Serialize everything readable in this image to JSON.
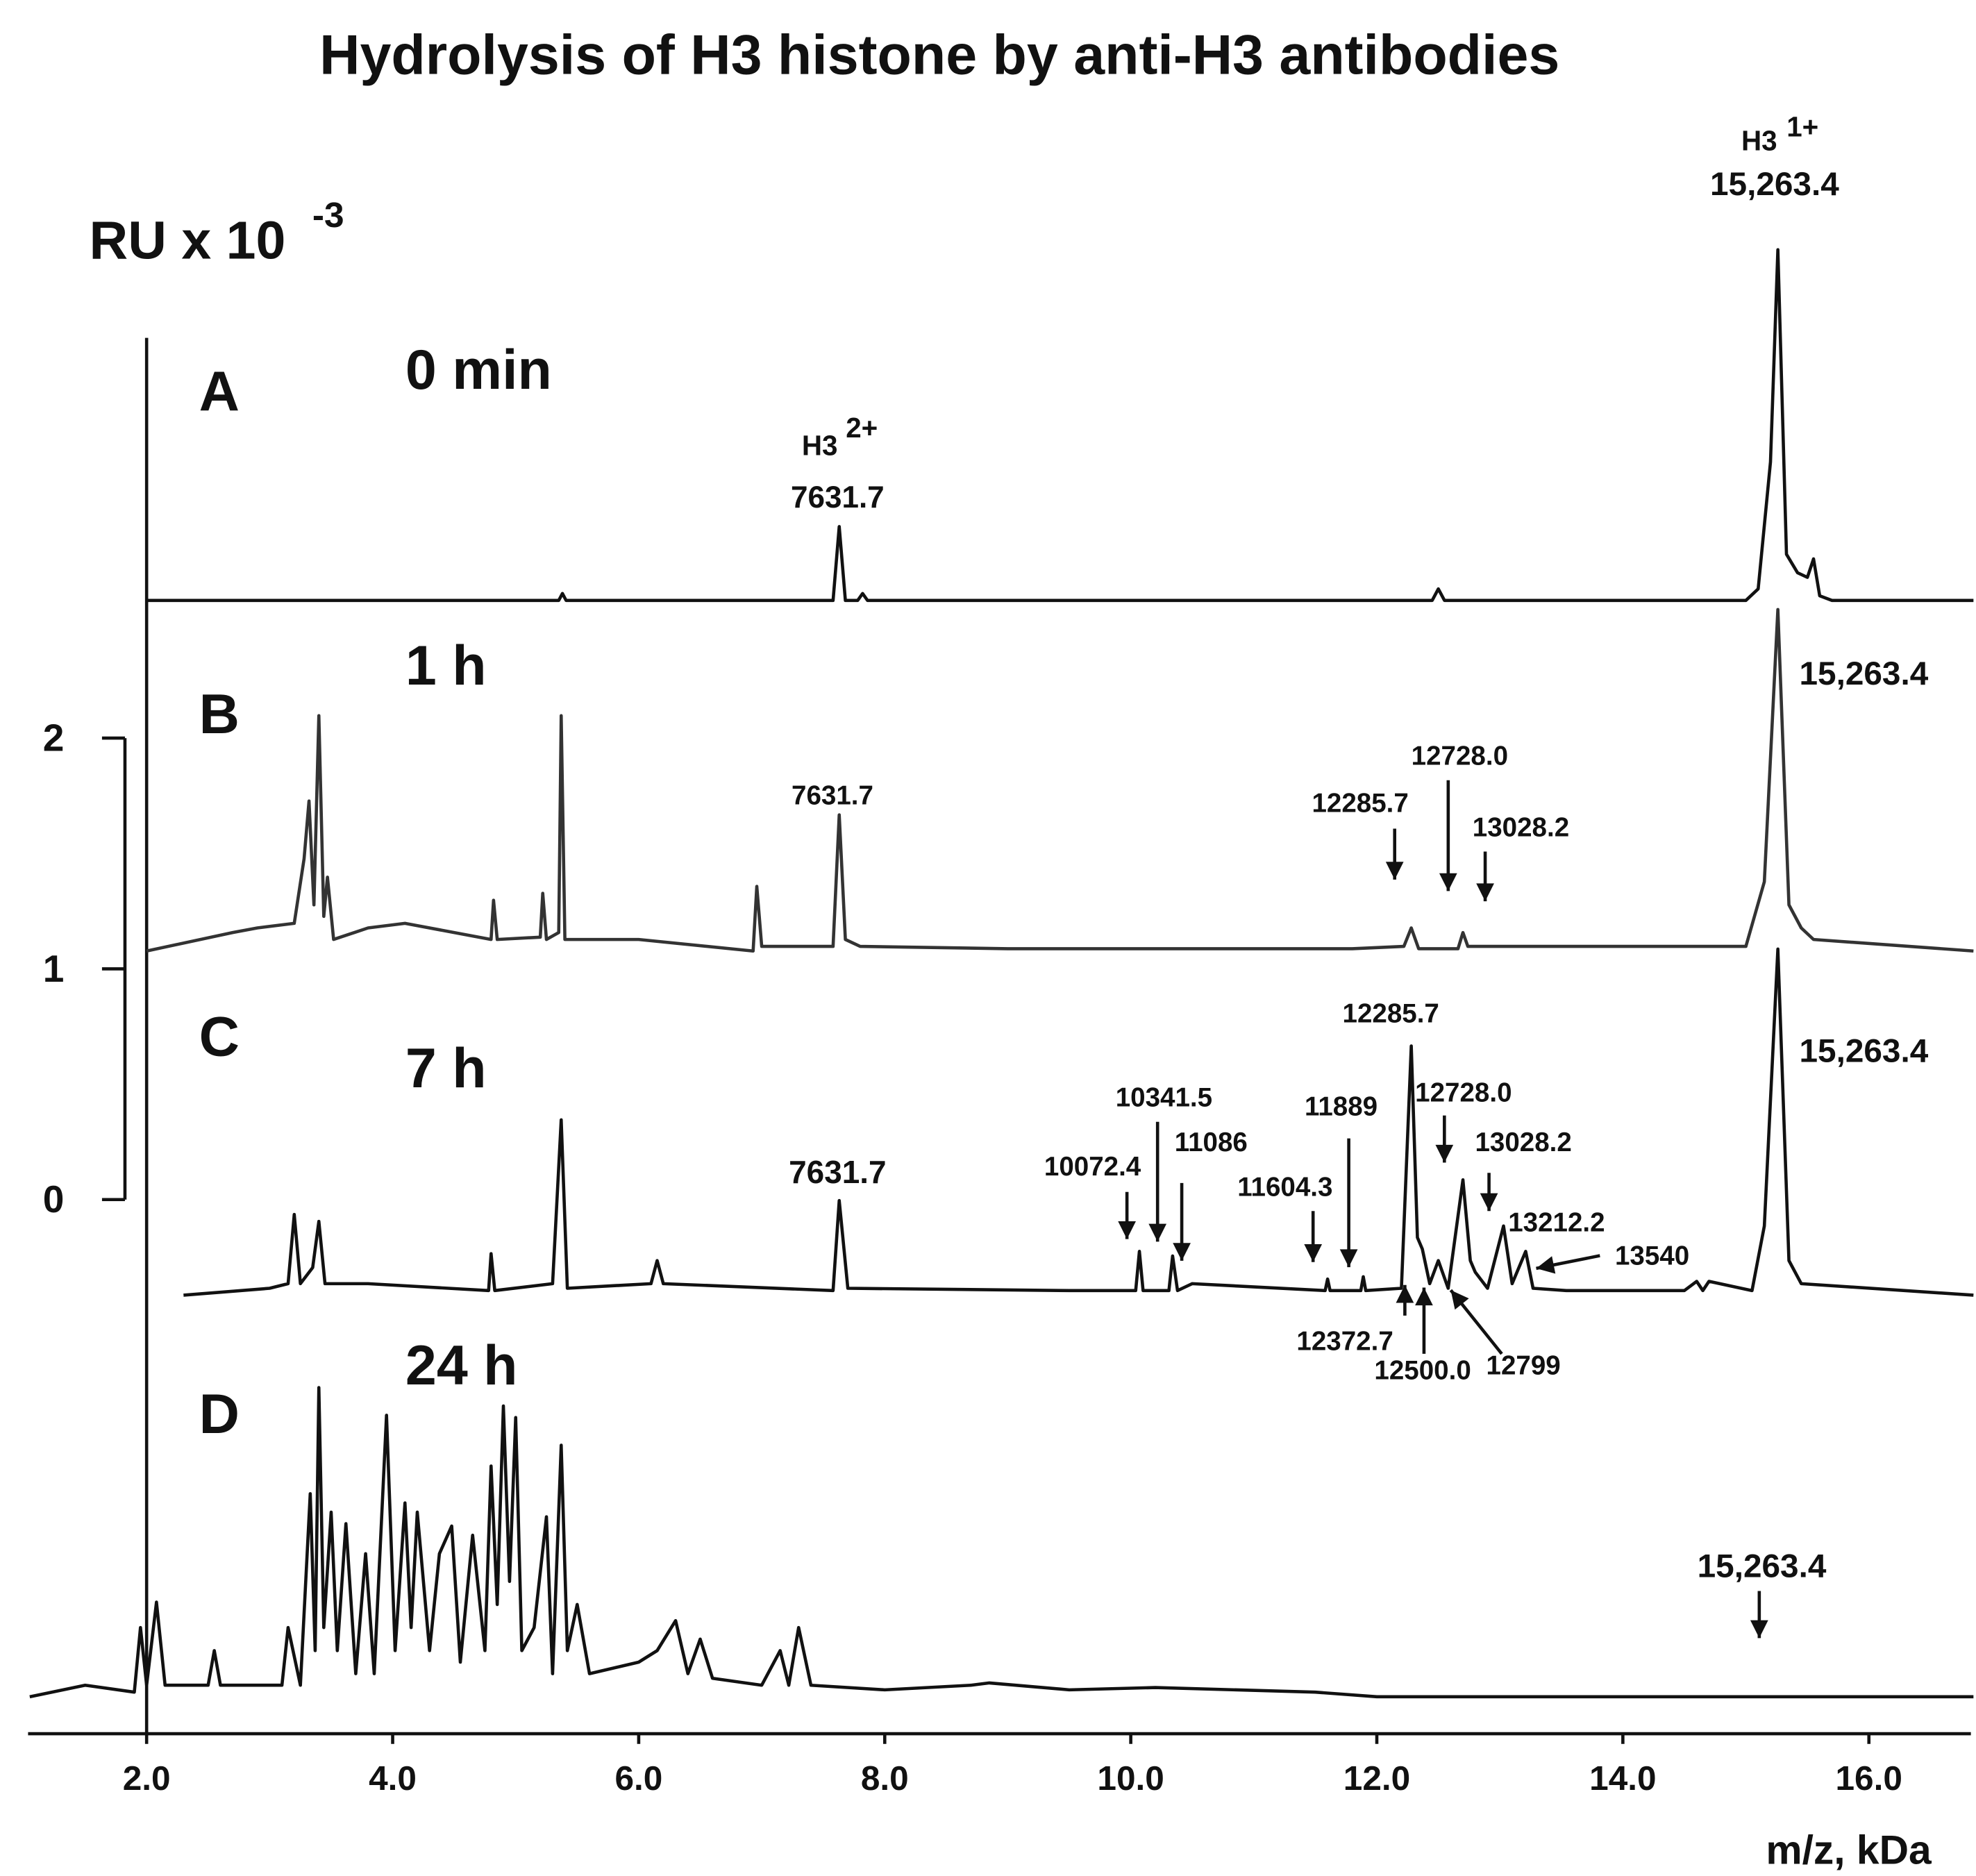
{
  "chart_data": {
    "type": "line",
    "title": "Hydrolysis of H3 histone by anti-H3 antibodies",
    "y_label": "RU x 10",
    "y_label_exponent": "-3",
    "x_label": "m/z, kDa",
    "xlim": [
      1.05,
      16.85
    ],
    "xticks": [
      {
        "value": 2,
        "label": "2.0"
      },
      {
        "value": 4,
        "label": "4.0"
      },
      {
        "value": 6,
        "label": "6.0"
      },
      {
        "value": 8,
        "label": "8.0"
      },
      {
        "value": 10,
        "label": "10.0"
      },
      {
        "value": 12,
        "label": "12.0"
      },
      {
        "value": 14,
        "label": "14.0"
      },
      {
        "value": 16,
        "label": "16.0"
      }
    ],
    "ylim": [
      0,
      2
    ],
    "yticks": [
      0,
      1,
      2
    ],
    "series": [
      {
        "name": "A",
        "time": "0 min",
        "color": "#111111",
        "x": [
          2.0,
          5.35,
          5.38,
          5.41,
          7.58,
          7.63,
          7.68,
          7.78,
          7.82,
          7.86,
          12.45,
          12.5,
          12.55,
          15.0,
          15.1,
          15.2,
          15.26,
          15.33,
          15.42,
          15.5,
          15.55,
          15.6,
          15.7,
          16.85
        ],
        "values": [
          0,
          0,
          0.03,
          0,
          0,
          0.32,
          0,
          0,
          0.03,
          0,
          0,
          0.05,
          0,
          0,
          0.05,
          0.6,
          1.52,
          0.2,
          0.12,
          0.1,
          0.18,
          0.02,
          0,
          0
        ],
        "annotations": [
          "H3",
          "2+",
          "7631.7",
          "H3",
          "1+",
          "15,263.4"
        ]
      },
      {
        "name": "B",
        "time": "1 h",
        "color": "#333333",
        "x": [
          2.0,
          2.7,
          2.9,
          3.2,
          3.28,
          3.32,
          3.36,
          3.4,
          3.44,
          3.47,
          3.52,
          3.8,
          4.1,
          4.8,
          4.82,
          4.85,
          5.2,
          5.22,
          5.25,
          5.35,
          5.37,
          5.4,
          6.0,
          6.93,
          6.96,
          7.0,
          7.58,
          7.63,
          7.68,
          7.8,
          9.0,
          10.34,
          11.8,
          12.22,
          12.28,
          12.34,
          12.66,
          12.7,
          12.74,
          13.0,
          14.6,
          15.0,
          15.15,
          15.26,
          15.35,
          15.45,
          15.55,
          16.85
        ],
        "values": [
          0,
          0.08,
          0.1,
          0.12,
          0.4,
          0.65,
          0.2,
          1.02,
          0.15,
          0.32,
          0.05,
          0.1,
          0.12,
          0.05,
          0.22,
          0.05,
          0.06,
          0.25,
          0.05,
          0.08,
          1.02,
          0.05,
          0.05,
          0,
          0.28,
          0.02,
          0.02,
          0.59,
          0.05,
          0.02,
          0.01,
          0.01,
          0.01,
          0.02,
          0.1,
          0.01,
          0.01,
          0.08,
          0.02,
          0.02,
          0.02,
          0.02,
          0.3,
          1.48,
          0.2,
          0.1,
          0.05,
          0
        ],
        "annotations": [
          "15,263.4",
          "7631.7",
          "12285.7",
          "12728.0",
          "13028.2"
        ]
      },
      {
        "name": "C",
        "time": "7 h",
        "color": "#111111",
        "x": [
          2.3,
          3.0,
          3.15,
          3.2,
          3.25,
          3.35,
          3.4,
          3.45,
          3.8,
          4.78,
          4.8,
          4.83,
          5.3,
          5.37,
          5.42,
          6.1,
          6.15,
          6.2,
          7.58,
          7.63,
          7.7,
          9.5,
          10.04,
          10.07,
          10.1,
          10.31,
          10.34,
          10.38,
          10.5,
          11.58,
          11.6,
          11.62,
          11.87,
          11.89,
          11.91,
          12.2,
          12.28,
          12.33,
          12.37,
          12.43,
          12.5,
          12.58,
          12.7,
          12.76,
          12.8,
          12.9,
          13.03,
          13.1,
          13.21,
          13.27,
          13.54,
          14.5,
          14.6,
          14.65,
          14.7,
          15.05,
          15.15,
          15.26,
          15.35,
          15.45,
          16.85
        ],
        "values": [
          0,
          0.03,
          0.05,
          0.35,
          0.05,
          0.12,
          0.32,
          0.05,
          0.05,
          0.02,
          0.18,
          0.02,
          0.05,
          0.76,
          0.03,
          0.05,
          0.15,
          0.05,
          0.02,
          0.41,
          0.03,
          0.02,
          0.02,
          0.19,
          0.02,
          0.02,
          0.17,
          0.02,
          0.05,
          0.02,
          0.07,
          0.02,
          0.02,
          0.08,
          0.02,
          0.03,
          1.08,
          0.25,
          0.2,
          0.05,
          0.15,
          0.03,
          0.5,
          0.15,
          0.1,
          0.03,
          0.3,
          0.05,
          0.19,
          0.03,
          0.02,
          0.02,
          0.06,
          0.02,
          0.06,
          0.02,
          0.3,
          1.5,
          0.15,
          0.05,
          0
        ],
        "annotations": [
          "12285.7",
          "10341.5",
          "11086",
          "11889",
          "12728.0",
          "15,263.4",
          "10072.4",
          "11604.3",
          "13028.2",
          "7631.7",
          "13212.2",
          "13540",
          "12372.7",
          "12500.0",
          "12799"
        ]
      },
      {
        "name": "D",
        "time": "24 h",
        "color": "#111111",
        "x": [
          1.05,
          1.5,
          1.9,
          1.95,
          2.0,
          2.08,
          2.15,
          2.5,
          2.55,
          2.6,
          3.1,
          3.15,
          3.25,
          3.33,
          3.37,
          3.4,
          3.44,
          3.5,
          3.55,
          3.62,
          3.7,
          3.78,
          3.85,
          3.95,
          4.02,
          4.1,
          4.15,
          4.2,
          4.3,
          4.38,
          4.48,
          4.55,
          4.65,
          4.75,
          4.8,
          4.85,
          4.9,
          4.95,
          5.0,
          5.05,
          5.15,
          5.25,
          5.3,
          5.37,
          5.42,
          5.5,
          5.6,
          6.0,
          6.15,
          6.3,
          6.4,
          6.5,
          6.6,
          7.0,
          7.15,
          7.22,
          7.3,
          7.4,
          8.0,
          8.7,
          8.85,
          9.5,
          10.2,
          11.5,
          12.0,
          16.85
        ],
        "values": [
          0,
          0.05,
          0.02,
          0.3,
          0.05,
          0.41,
          0.05,
          0.05,
          0.2,
          0.05,
          0.05,
          0.3,
          0.05,
          0.88,
          0.2,
          1.34,
          0.3,
          0.8,
          0.2,
          0.75,
          0.1,
          0.62,
          0.1,
          1.22,
          0.2,
          0.84,
          0.3,
          0.8,
          0.2,
          0.62,
          0.74,
          0.15,
          0.7,
          0.2,
          1.0,
          0.4,
          1.26,
          0.5,
          1.21,
          0.2,
          0.3,
          0.78,
          0.1,
          1.09,
          0.2,
          0.4,
          0.1,
          0.15,
          0.2,
          0.33,
          0.1,
          0.25,
          0.08,
          0.05,
          0.2,
          0.05,
          0.3,
          0.05,
          0.03,
          0.05,
          0.06,
          0.03,
          0.04,
          0.02,
          0,
          0
        ],
        "annotations": [
          "15,263.4"
        ]
      }
    ]
  }
}
